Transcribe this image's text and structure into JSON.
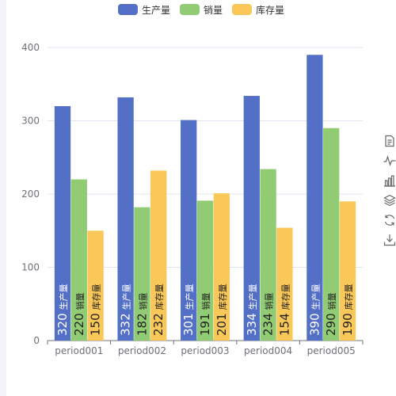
{
  "legend": [
    {
      "label": "生产量",
      "color": "#5470c6"
    },
    {
      "label": "销量",
      "color": "#91cc75"
    },
    {
      "label": "库存量",
      "color": "#fac858"
    }
  ],
  "toolbox": [
    {
      "icon": "data-view-icon"
    },
    {
      "icon": "line-chart-icon"
    },
    {
      "icon": "bar-chart-icon"
    },
    {
      "icon": "stack-icon"
    },
    {
      "icon": "restore-icon"
    },
    {
      "icon": "save-image-icon"
    }
  ],
  "chart_data": {
    "type": "bar",
    "categories": [
      "period001",
      "period002",
      "period003",
      "period004",
      "period005"
    ],
    "series": [
      {
        "name": "生产量",
        "color": "#5470c6",
        "values": [
          320,
          332,
          301,
          334,
          390
        ]
      },
      {
        "name": "销量",
        "color": "#91cc75",
        "values": [
          220,
          182,
          191,
          234,
          290
        ]
      },
      {
        "name": "库存量",
        "color": "#fac858",
        "values": [
          150,
          232,
          201,
          154,
          190
        ]
      }
    ],
    "ylim": [
      0,
      400
    ],
    "yticks": [
      0,
      100,
      200,
      300,
      400
    ],
    "grid": true,
    "legend_position": "top-center",
    "bar_label": "value + series name, rotated vertical inside bar bottom"
  }
}
